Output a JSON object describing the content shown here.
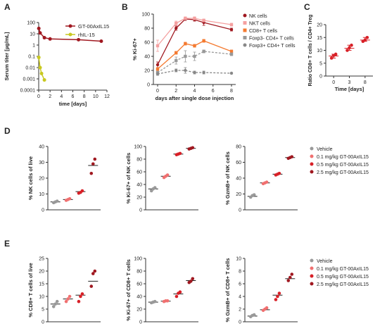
{
  "colors": {
    "axis": "#333333",
    "dark_red": "#a01820",
    "red": "#d82027",
    "light_red": "#f07070",
    "pink": "#f4a0a0",
    "orange": "#f47a30",
    "yellow": "#c8c820",
    "gray": "#999999",
    "gray_dark": "#888888"
  },
  "chart_data": [
    {
      "id": "A",
      "panel_label": "A",
      "type": "line",
      "xlabel": "time [days]",
      "ylabel": "Serum titer [µg/mL]",
      "log_y": true,
      "xlim": [
        0,
        12
      ],
      "ylim": [
        0.0001,
        100
      ],
      "x_ticks": [
        "0",
        "2",
        "4",
        "6",
        "8",
        "10",
        "12"
      ],
      "y_ticks": [
        "0.0001",
        "0.001",
        "0.01",
        "0.1",
        "1",
        "10",
        "100"
      ],
      "legend_placement": "top-right",
      "series": [
        {
          "name": "GT-00AxIL15",
          "color_key": "dark_red",
          "marker": "circle",
          "x": [
            0.02,
            0.25,
            1,
            2,
            7,
            11
          ],
          "y": [
            30,
            12,
            4.5,
            3.5,
            3,
            2.2
          ]
        },
        {
          "name": "rhIL-15",
          "color_key": "yellow",
          "marker": "circle",
          "x": [
            0.02,
            0.25,
            0.5,
            1
          ],
          "y": [
            0.08,
            0.01,
            0.003,
            0.0008
          ]
        }
      ]
    },
    {
      "id": "B",
      "panel_label": "B",
      "type": "line",
      "xlabel": "days after single dose injection",
      "ylabel": "% Ki-67+",
      "xlim": [
        0,
        8
      ],
      "ylim": [
        0,
        100
      ],
      "x_ticks": [
        "0",
        "2",
        "4",
        "6",
        "8"
      ],
      "y_ticks": [
        "0",
        "20",
        "40",
        "60",
        "80",
        "100"
      ],
      "legend_placement": "top-right",
      "series": [
        {
          "name": "NK cells",
          "color_key": "dark_red",
          "marker": "circle",
          "dashed": false,
          "x": [
            0,
            2,
            3,
            4,
            5,
            8
          ],
          "y": [
            28,
            80,
            93,
            92,
            88,
            78
          ],
          "err": [
            4,
            3,
            2,
            2,
            4,
            2
          ]
        },
        {
          "name": "NKT cells",
          "color_key": "pink",
          "marker": "square",
          "dashed": false,
          "x": [
            0,
            2,
            3,
            4,
            5,
            8
          ],
          "y": [
            55,
            87,
            94,
            94,
            91,
            85
          ],
          "err": [
            8,
            3,
            2,
            2,
            2,
            2
          ]
        },
        {
          "name": "CD8+ T cells",
          "color_key": "orange",
          "marker": "square",
          "dashed": false,
          "x": [
            0,
            2,
            3,
            4,
            5,
            8
          ],
          "y": [
            22,
            45,
            58,
            55,
            62,
            47
          ],
          "err": [
            2,
            2,
            2,
            2,
            2,
            2
          ]
        },
        {
          "name": "Foxp3- CD4+ T cells",
          "color_key": "gray",
          "marker": "square",
          "dashed": true,
          "x": [
            0,
            2,
            3,
            4,
            5,
            8
          ],
          "y": [
            17,
            34,
            40,
            40,
            47,
            43
          ],
          "err": [
            2,
            5,
            8,
            6,
            2,
            2
          ]
        },
        {
          "name": "Foxp3+ CD4+ T cells",
          "color_key": "gray_dark",
          "marker": "circle",
          "dashed": true,
          "x": [
            0,
            2,
            3,
            4,
            5,
            8
          ],
          "y": [
            15,
            20,
            20,
            17,
            17,
            16
          ],
          "err": [
            2,
            2,
            4,
            2,
            2,
            1
          ]
        }
      ]
    },
    {
      "id": "C",
      "panel_label": "C",
      "type": "scatter",
      "xlabel": "Time [days]",
      "ylabel": "Ratio CD8+ T cells / CD4+ Treg",
      "ylim": [
        0,
        20
      ],
      "y_ticks": [
        "0",
        "5",
        "10",
        "15",
        "20"
      ],
      "categories": [
        "0",
        "3",
        "8"
      ],
      "groups": [
        {
          "points": [
            7,
            8,
            8.5
          ],
          "mean": 7.8
        },
        {
          "points": [
            10,
            11,
            12
          ],
          "mean": 10.8
        },
        {
          "points": [
            13.5,
            14,
            15
          ],
          "mean": 14
        }
      ]
    },
    {
      "id": "D1",
      "panel_label": "D",
      "type": "scatter",
      "ylabel": "% NK cells of live",
      "ylim": [
        0,
        40
      ],
      "y_ticks": [
        "0",
        "10",
        "20",
        "30",
        "40"
      ],
      "groups": [
        {
          "points": [
            4.5,
            5,
            5.5
          ],
          "mean": 5
        },
        {
          "points": [
            6,
            6.5,
            7
          ],
          "mean": 6.5
        },
        {
          "points": [
            10.5,
            11,
            12
          ],
          "mean": 11.5
        },
        {
          "points": [
            23,
            29,
            32
          ],
          "mean": 28
        }
      ]
    },
    {
      "id": "D2",
      "type": "scatter",
      "ylabel": "% Ki-67+ of NK cells",
      "ylim": [
        0,
        100
      ],
      "y_ticks": [
        "0",
        "20",
        "40",
        "60",
        "80",
        "100"
      ],
      "groups": [
        {
          "points": [
            30,
            33,
            35
          ],
          "mean": 33
        },
        {
          "points": [
            51,
            53,
            55
          ],
          "mean": 53
        },
        {
          "points": [
            87,
            88,
            89
          ],
          "mean": 88
        },
        {
          "points": [
            96,
            97,
            98
          ],
          "mean": 97
        }
      ]
    },
    {
      "id": "D3",
      "type": "scatter",
      "ylabel": "% GzmB+ of NK cells",
      "ylim": [
        0,
        80
      ],
      "y_ticks": [
        "0",
        "20",
        "40",
        "60",
        "80"
      ],
      "legend_placement": "right",
      "legend": [
        "Vehicle",
        "0.1 mg/kg GT-00AxIL15",
        "0.5 mg/kg GT-00AxIL15",
        "2.5 mg/kg GT-00AxIL15"
      ],
      "groups": [
        {
          "points": [
            16,
            18,
            19
          ],
          "mean": 17
        },
        {
          "points": [
            33,
            34,
            35
          ],
          "mean": 34
        },
        {
          "points": [
            44,
            45,
            46
          ],
          "mean": 45
        },
        {
          "points": [
            65,
            66,
            67
          ],
          "mean": 66
        }
      ]
    },
    {
      "id": "E1",
      "panel_label": "E",
      "type": "scatter",
      "ylabel": "% CD8+ T cells of live",
      "ylim": [
        0,
        25
      ],
      "y_ticks": [
        "0",
        "5",
        "10",
        "15",
        "20",
        "25"
      ],
      "groups": [
        {
          "points": [
            6,
            7,
            8
          ],
          "mean": 7
        },
        {
          "points": [
            8,
            9,
            10
          ],
          "mean": 9
        },
        {
          "points": [
            8,
            10,
            11
          ],
          "mean": 10.5
        },
        {
          "points": [
            14,
            19,
            20
          ],
          "mean": 16
        }
      ]
    },
    {
      "id": "E2",
      "type": "scatter",
      "ylabel": "% Ki-67+ of CD8+ T cells",
      "ylim": [
        0,
        100
      ],
      "y_ticks": [
        "0",
        "20",
        "40",
        "60",
        "80",
        "100"
      ],
      "groups": [
        {
          "points": [
            30,
            31,
            32
          ],
          "mean": 31
        },
        {
          "points": [
            32,
            33,
            33
          ],
          "mean": 32.5
        },
        {
          "points": [
            40,
            45,
            47
          ],
          "mean": 44
        },
        {
          "points": [
            62,
            64,
            68
          ],
          "mean": 65
        }
      ]
    },
    {
      "id": "E3",
      "type": "scatter",
      "ylabel": "% GzmB+ of CD8+ T cells",
      "ylim": [
        0,
        10
      ],
      "y_ticks": [
        "0",
        "2",
        "4",
        "6",
        "8",
        "10"
      ],
      "legend_placement": "right",
      "legend": [
        "Vehicle",
        "0.1 mg/kg GT-00AxIL15",
        "0.5 mg/kg GT-00AxIL15",
        "2.5 mg/kg GT-00AxIL15"
      ],
      "groups": [
        {
          "points": [
            0.8,
            1.0,
            1.1
          ],
          "mean": 0.9
        },
        {
          "points": [
            1.8,
            2.0,
            2.2
          ],
          "mean": 1.9
        },
        {
          "points": [
            3.5,
            4.0,
            4.5
          ],
          "mean": 4.2
        },
        {
          "points": [
            6.5,
            7.0,
            7.5
          ],
          "mean": 6.8
        }
      ]
    }
  ],
  "group_colors": [
    "gray",
    "light_red",
    "red",
    "dark_red"
  ]
}
